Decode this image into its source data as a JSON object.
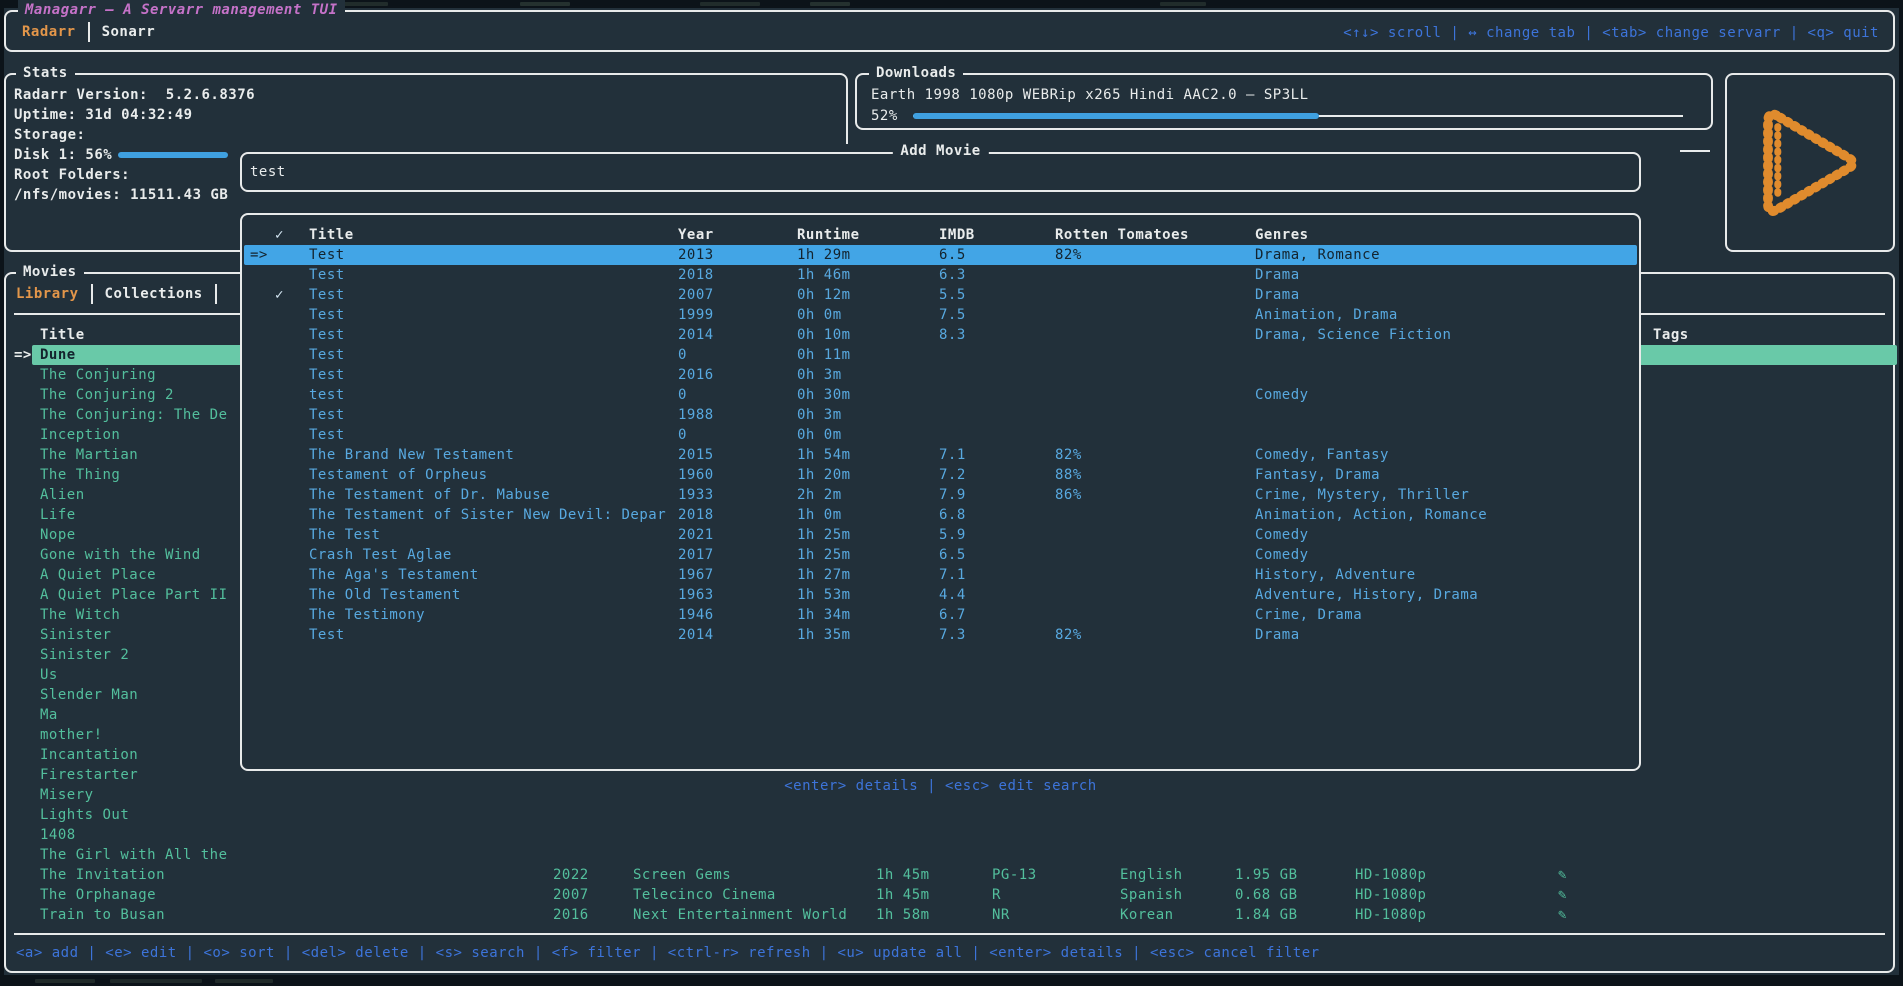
{
  "colors": {
    "bg": "#22303a",
    "frame": "#0c1319",
    "border": "#e8eaea",
    "magenta": "#c572c8",
    "orange": "#e3964a",
    "logo-orange": "#e08b2d",
    "blue": "#3d74da",
    "rowblue": "#58a9e0",
    "selblue": "#42a5e6",
    "teal": "#53bf9d",
    "selteal": "#69c9a8",
    "darktext": "#14242e",
    "gauge": "#3fa0e0",
    "white": "#e9ecec"
  },
  "app": {
    "title": "Managarr – A Servarr management TUI",
    "tabs": [
      {
        "label": "Radarr",
        "active": true
      },
      {
        "label": "Sonarr",
        "active": false
      }
    ],
    "top_help": "<↑↓> scroll | ↔ change tab | <tab> change servarr | <q> quit"
  },
  "stats": {
    "panel_title": "Stats",
    "lines": [
      "Radarr Version:  5.2.6.8376",
      "Uptime: 31d 04:32:49",
      "Storage:"
    ],
    "disk_label": "Disk 1: 56%",
    "disk_percent": 56,
    "root_folders_label": "Root Folders:",
    "root_folder": "/nfs/movies: 11511.43 GB"
  },
  "downloads": {
    "panel_title": "Downloads",
    "item_title": "Earth 1998 1080p WEBRip x265 Hindi AAC2.0 – SP3LL",
    "percent_label": "52%",
    "percent": 52
  },
  "add_movie": {
    "panel_title": "Add Movie",
    "search_value": "test",
    "help": "<enter> details | <esc> edit search",
    "selected_marker": "=>",
    "columns": [
      "✓",
      "Title",
      "Year",
      "Runtime",
      "IMDB",
      "Rotten Tomatoes",
      "Genres"
    ],
    "selected_index": 0,
    "rows": [
      {
        "check": "",
        "title": "Test",
        "year": "2013",
        "runtime": "1h 29m",
        "imdb": "6.5",
        "rt": "82%",
        "genres": "Drama, Romance"
      },
      {
        "check": "",
        "title": "Test",
        "year": "2018",
        "runtime": "1h 46m",
        "imdb": "6.3",
        "rt": "",
        "genres": "Drama"
      },
      {
        "check": "✓",
        "title": "Test",
        "year": "2007",
        "runtime": "0h 12m",
        "imdb": "5.5",
        "rt": "",
        "genres": "Drama"
      },
      {
        "check": "",
        "title": "Test",
        "year": "1999",
        "runtime": "0h 0m",
        "imdb": "7.5",
        "rt": "",
        "genres": "Animation, Drama"
      },
      {
        "check": "",
        "title": "Test",
        "year": "2014",
        "runtime": "0h 10m",
        "imdb": "8.3",
        "rt": "",
        "genres": "Drama, Science Fiction"
      },
      {
        "check": "",
        "title": "Test",
        "year": "0",
        "runtime": "0h 11m",
        "imdb": "",
        "rt": "",
        "genres": ""
      },
      {
        "check": "",
        "title": "Test",
        "year": "2016",
        "runtime": "0h 3m",
        "imdb": "",
        "rt": "",
        "genres": ""
      },
      {
        "check": "",
        "title": "test",
        "year": "0",
        "runtime": "0h 30m",
        "imdb": "",
        "rt": "",
        "genres": "Comedy"
      },
      {
        "check": "",
        "title": "Test",
        "year": "1988",
        "runtime": "0h 3m",
        "imdb": "",
        "rt": "",
        "genres": ""
      },
      {
        "check": "",
        "title": "Test",
        "year": "0",
        "runtime": "0h 0m",
        "imdb": "",
        "rt": "",
        "genres": ""
      },
      {
        "check": "",
        "title": "The Brand New Testament",
        "year": "2015",
        "runtime": "1h 54m",
        "imdb": "7.1",
        "rt": "82%",
        "genres": "Comedy, Fantasy"
      },
      {
        "check": "",
        "title": "Testament of Orpheus",
        "year": "1960",
        "runtime": "1h 20m",
        "imdb": "7.2",
        "rt": "88%",
        "genres": "Fantasy, Drama"
      },
      {
        "check": "",
        "title": "The Testament of Dr. Mabuse",
        "year": "1933",
        "runtime": "2h 2m",
        "imdb": "7.9",
        "rt": "86%",
        "genres": "Crime, Mystery, Thriller"
      },
      {
        "check": "",
        "title": "The Testament of Sister New Devil: Depar",
        "year": "2018",
        "runtime": "1h 0m",
        "imdb": "6.8",
        "rt": "",
        "genres": "Animation, Action, Romance"
      },
      {
        "check": "",
        "title": "The Test",
        "year": "2021",
        "runtime": "1h 25m",
        "imdb": "5.9",
        "rt": "",
        "genres": "Comedy"
      },
      {
        "check": "",
        "title": "Crash Test Aglae",
        "year": "2017",
        "runtime": "1h 25m",
        "imdb": "6.5",
        "rt": "",
        "genres": "Comedy"
      },
      {
        "check": "",
        "title": "The Aga's Testament",
        "year": "1967",
        "runtime": "1h 27m",
        "imdb": "7.1",
        "rt": "",
        "genres": "History, Adventure"
      },
      {
        "check": "",
        "title": "The Old Testament",
        "year": "1963",
        "runtime": "1h 53m",
        "imdb": "4.4",
        "rt": "",
        "genres": "Adventure, History, Drama"
      },
      {
        "check": "",
        "title": "The Testimony",
        "year": "1946",
        "runtime": "1h 34m",
        "imdb": "6.7",
        "rt": "",
        "genres": "Crime, Drama"
      },
      {
        "check": "",
        "title": "Test",
        "year": "2014",
        "runtime": "1h 35m",
        "imdb": "7.3",
        "rt": "82%",
        "genres": "Drama"
      }
    ]
  },
  "movies": {
    "panel_title": "Movies",
    "tabs": [
      {
        "label": "Library",
        "active": true
      },
      {
        "label": "Collections",
        "active": false
      }
    ],
    "column_title": "Title",
    "column_tags": "Tags",
    "selected_marker": "=>",
    "selected_index": 0,
    "monitored_icon": "✎",
    "items": [
      "Dune",
      "The Conjuring",
      "The Conjuring 2",
      "The Conjuring: The De",
      "Inception",
      "The Martian",
      "The Thing",
      "Alien",
      "Life",
      "Nope",
      "Gone with the Wind",
      "A Quiet Place",
      "A Quiet Place Part II",
      "The Witch",
      "Sinister",
      "Sinister 2",
      "Us",
      "Slender Man",
      "Ma",
      "mother!",
      "Incantation",
      "Firestarter",
      "Misery",
      "Lights Out",
      "1408",
      "The Girl with All the",
      "The Invitation",
      "The Orphanage",
      "Train to Busan"
    ],
    "visible_details": [
      {
        "row": 26,
        "year": "2022",
        "studio": "Screen Gems",
        "runtime": "1h 45m",
        "rating": "PG-13",
        "language": "English",
        "size": "1.95 GB",
        "quality": "HD-1080p"
      },
      {
        "row": 27,
        "year": "2007",
        "studio": "Telecinco Cinema",
        "runtime": "1h 45m",
        "rating": "R",
        "language": "Spanish",
        "size": "0.68 GB",
        "quality": "HD-1080p"
      },
      {
        "row": 28,
        "year": "2016",
        "studio": "Next Entertainment World",
        "runtime": "1h 58m",
        "rating": "NR",
        "language": "Korean",
        "size": "1.84 GB",
        "quality": "HD-1080p"
      }
    ],
    "help": "<a> add | <e> edit | <o> sort | <del> delete | <s> search | <f> filter | <ctrl-r> refresh | <u> update all | <enter> details | <esc> cancel filter"
  }
}
